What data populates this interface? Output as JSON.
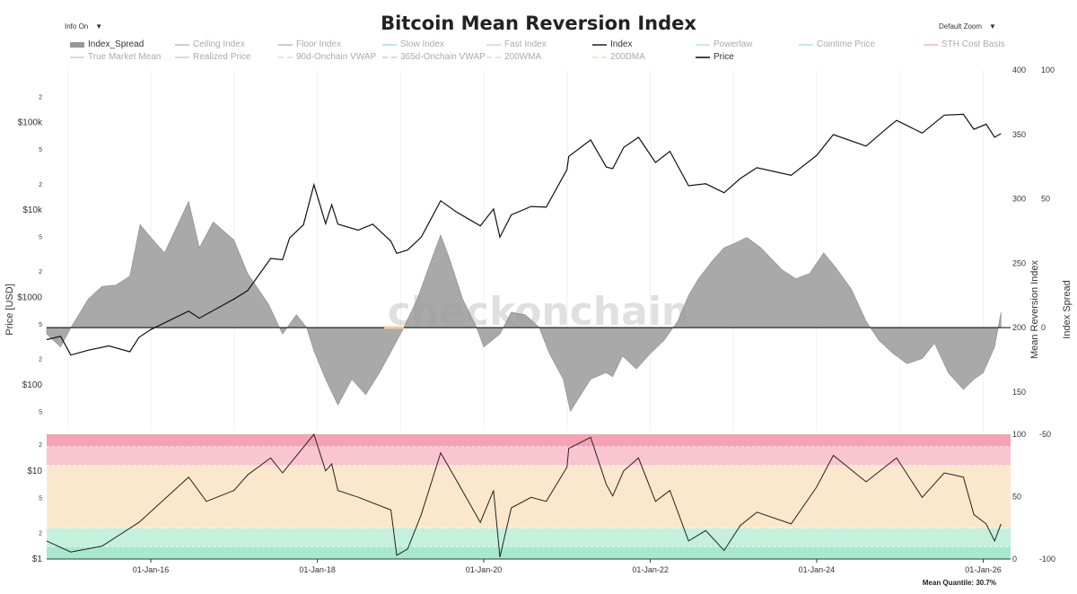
{
  "title": "Bitcoin Mean Reversion Index",
  "controls": {
    "info_label": "Info On",
    "zoom_label": "Default Zoom",
    "arrow": "▼"
  },
  "legend": [
    {
      "label": "Index_Spread",
      "color": "#999999",
      "active": true,
      "style": "bar"
    },
    {
      "label": "Ceiling Index",
      "color": "#cccccc",
      "active": false
    },
    {
      "label": "Floor Index",
      "color": "#cccccc",
      "active": false
    },
    {
      "label": "Slow Index",
      "color": "#bde3f2",
      "active": false
    },
    {
      "label": "Fast Index",
      "color": "#e8d8ef",
      "active": false
    },
    {
      "label": "Index",
      "color": "#555555",
      "active": true
    },
    {
      "label": "Powerlaw",
      "color": "#c9ecd9",
      "active": false
    },
    {
      "label": "Cointime Price",
      "color": "#bdeaf0",
      "active": false
    },
    {
      "label": "STH Cost Basis",
      "color": "#f6c6cc",
      "active": false
    },
    {
      "label": "True Market Mean",
      "color": "#c6dcf3",
      "active": false
    },
    {
      "label": "Realized Price",
      "color": "#d6d6ef",
      "active": false
    },
    {
      "label": "90d-Onchain VWAP",
      "color": "#e3e3e3",
      "active": false
    },
    {
      "label": "365d-Onchain VWAP",
      "color": "#f4c9cf",
      "active": false
    },
    {
      "label": "200WMA",
      "color": "#e8e8c8",
      "active": false
    },
    {
      "label": "200DMA",
      "color": "#f0e8b8",
      "active": false
    },
    {
      "label": "Price",
      "color": "#444444",
      "active": true
    }
  ],
  "axes": {
    "left_title": "Price [USD]",
    "right_title_1": "Mean Reversion Index",
    "right_title_2": "Index Spread",
    "price_ticks": [
      {
        "label": "2",
        "v": 200000
      },
      {
        "label": "$100k",
        "v": 100000
      },
      {
        "label": "5",
        "v": 50000
      },
      {
        "label": "2",
        "v": 20000
      },
      {
        "label": "$10k",
        "v": 10000
      },
      {
        "label": "5",
        "v": 5000
      },
      {
        "label": "2",
        "v": 2000
      },
      {
        "label": "$1000",
        "v": 1000
      },
      {
        "label": "5",
        "v": 500
      },
      {
        "label": "2",
        "v": 200
      },
      {
        "label": "$100",
        "v": 100
      },
      {
        "label": "5",
        "v": 50
      }
    ],
    "mri_ticks": [
      "400",
      "350",
      "300",
      "250",
      "200",
      "150"
    ],
    "mri_values": [
      400,
      350,
      300,
      250,
      200,
      150
    ],
    "spread_ticks": [
      "100",
      "50",
      "0"
    ],
    "spread_values": [
      100,
      50,
      0
    ],
    "lower_left_ticks": [
      {
        "label": "2",
        "v": 20
      },
      {
        "label": "$10",
        "v": 10
      },
      {
        "label": "5",
        "v": 5
      },
      {
        "label": "2",
        "v": 2
      },
      {
        "label": "$1",
        "v": 1
      }
    ],
    "lower_right1_ticks": [
      "100",
      "50",
      "0"
    ],
    "lower_right1_values": [
      100,
      50,
      0
    ],
    "lower_right2_ticks": [
      "-50",
      "-100"
    ],
    "lower_right2_values": [
      -50,
      -100
    ],
    "x_ticks": [
      "01-Jan-16",
      "01-Jan-18",
      "01-Jan-20",
      "01-Jan-22",
      "01-Jan-24",
      "01-Jan-26"
    ]
  },
  "watermark": "checkonchain",
  "footnote": "Mean Quantile: 30.7%",
  "bands": [
    {
      "from": 90,
      "to": 100,
      "color": "#f4a3b4"
    },
    {
      "from": 75,
      "to": 90,
      "color": "#f9c5d1"
    },
    {
      "from": 25,
      "to": 75,
      "color": "#fbe8cc"
    },
    {
      "from": 10,
      "to": 25,
      "color": "#c4f0dc"
    },
    {
      "from": 0,
      "to": 10,
      "color": "#a8e9cd"
    }
  ],
  "chart_data": {
    "type": "line",
    "x_range": [
      "2014-10-01",
      "2026-05-01"
    ],
    "price_range_log": [
      30,
      400000
    ],
    "mri_range": [
      120,
      400
    ],
    "lower_range_pct": [
      0,
      100
    ],
    "series": [
      {
        "name": "Price",
        "unit": "USD",
        "points": [
          [
            "2014-10-01",
            330
          ],
          [
            "2014-12-01",
            360
          ],
          [
            "2015-01-15",
            220
          ],
          [
            "2015-04-01",
            250
          ],
          [
            "2015-07-01",
            280
          ],
          [
            "2015-10-01",
            240
          ],
          [
            "2015-11-10",
            350
          ],
          [
            "2016-01-01",
            430
          ],
          [
            "2016-06-15",
            700
          ],
          [
            "2016-08-01",
            580
          ],
          [
            "2016-12-31",
            960
          ],
          [
            "2017-03-01",
            1200
          ],
          [
            "2017-06-10",
            2800
          ],
          [
            "2017-08-01",
            2700
          ],
          [
            "2017-09-01",
            4800
          ],
          [
            "2017-11-01",
            6800
          ],
          [
            "2017-12-17",
            19500
          ],
          [
            "2018-02-06",
            7000
          ],
          [
            "2018-03-05",
            11500
          ],
          [
            "2018-04-01",
            6900
          ],
          [
            "2018-06-29",
            5900
          ],
          [
            "2018-09-01",
            6900
          ],
          [
            "2018-11-20",
            4400
          ],
          [
            "2018-12-15",
            3200
          ],
          [
            "2019-02-01",
            3500
          ],
          [
            "2019-04-02",
            4900
          ],
          [
            "2019-06-26",
            12800
          ],
          [
            "2019-09-01",
            9600
          ],
          [
            "2019-12-17",
            6600
          ],
          [
            "2020-02-13",
            10300
          ],
          [
            "2020-03-12",
            4900
          ],
          [
            "2020-05-01",
            8800
          ],
          [
            "2020-07-27",
            11000
          ],
          [
            "2020-10-01",
            10800
          ],
          [
            "2020-12-31",
            29000
          ],
          [
            "2021-01-08",
            41000
          ],
          [
            "2021-04-14",
            63500
          ],
          [
            "2021-06-22",
            31000
          ],
          [
            "2021-07-20",
            29800
          ],
          [
            "2021-09-06",
            52000
          ],
          [
            "2021-11-10",
            68000
          ],
          [
            "2022-01-24",
            35000
          ],
          [
            "2022-03-28",
            47000
          ],
          [
            "2022-06-18",
            19000
          ],
          [
            "2022-09-01",
            20000
          ],
          [
            "2022-11-21",
            15800
          ],
          [
            "2023-01-31",
            23000
          ],
          [
            "2023-04-14",
            30500
          ],
          [
            "2023-09-11",
            25000
          ],
          [
            "2023-12-31",
            42000
          ],
          [
            "2024-03-14",
            73000
          ],
          [
            "2024-08-05",
            54000
          ],
          [
            "2024-11-13",
            90000
          ],
          [
            "2024-12-17",
            106000
          ],
          [
            "2025-04-08",
            76000
          ],
          [
            "2025-07-14",
            122000
          ],
          [
            "2025-10-06",
            124500
          ],
          [
            "2025-11-21",
            84000
          ],
          [
            "2026-01-14",
            96000
          ],
          [
            "2026-02-20",
            68000
          ],
          [
            "2026-03-20",
            75000
          ]
        ]
      },
      {
        "name": "Index_Spread",
        "unit": "Mean Reversion Index",
        "baseline": 200,
        "points": [
          [
            "2014-10-01",
            195
          ],
          [
            "2014-12-01",
            185
          ],
          [
            "2015-01-15",
            200
          ],
          [
            "2015-04-01",
            222
          ],
          [
            "2015-06-01",
            232
          ],
          [
            "2015-08-01",
            233
          ],
          [
            "2015-10-01",
            240
          ],
          [
            "2015-11-15",
            280
          ],
          [
            "2016-01-01",
            270
          ],
          [
            "2016-03-01",
            258
          ],
          [
            "2016-06-15",
            298
          ],
          [
            "2016-08-01",
            262
          ],
          [
            "2016-10-01",
            282
          ],
          [
            "2016-12-31",
            268
          ],
          [
            "2017-03-01",
            242
          ],
          [
            "2017-06-01",
            218
          ],
          [
            "2017-08-01",
            195
          ],
          [
            "2017-10-01",
            210
          ],
          [
            "2017-11-15",
            200
          ],
          [
            "2017-12-17",
            182
          ],
          [
            "2018-02-06",
            160
          ],
          [
            "2018-04-01",
            140
          ],
          [
            "2018-06-01",
            160
          ],
          [
            "2018-08-01",
            148
          ],
          [
            "2018-10-01",
            165
          ],
          [
            "2018-12-01",
            185
          ],
          [
            "2019-01-15",
            200
          ],
          [
            "2019-03-15",
            222
          ],
          [
            "2019-06-01",
            260
          ],
          [
            "2019-06-26",
            272
          ],
          [
            "2019-08-01",
            255
          ],
          [
            "2019-10-01",
            222
          ],
          [
            "2019-12-01",
            200
          ],
          [
            "2020-01-01",
            185
          ],
          [
            "2020-03-12",
            195
          ],
          [
            "2020-05-01",
            212
          ],
          [
            "2020-07-01",
            210
          ],
          [
            "2020-09-01",
            200
          ],
          [
            "2020-10-15",
            180
          ],
          [
            "2020-12-15",
            160
          ],
          [
            "2021-01-15",
            135
          ],
          [
            "2021-02-20",
            145
          ],
          [
            "2021-04-14",
            160
          ],
          [
            "2021-06-20",
            165
          ],
          [
            "2021-07-20",
            162
          ],
          [
            "2021-09-01",
            178
          ],
          [
            "2021-11-01",
            168
          ],
          [
            "2022-01-01",
            180
          ],
          [
            "2022-03-01",
            190
          ],
          [
            "2022-05-01",
            205
          ],
          [
            "2022-06-18",
            225
          ],
          [
            "2022-08-01",
            238
          ],
          [
            "2022-10-01",
            252
          ],
          [
            "2022-11-21",
            262
          ],
          [
            "2023-01-01",
            265
          ],
          [
            "2023-03-01",
            270
          ],
          [
            "2023-05-01",
            262
          ],
          [
            "2023-08-01",
            245
          ],
          [
            "2023-10-01",
            238
          ],
          [
            "2023-12-01",
            242
          ],
          [
            "2024-02-01",
            258
          ],
          [
            "2024-04-01",
            245
          ],
          [
            "2024-06-01",
            230
          ],
          [
            "2024-08-05",
            205
          ],
          [
            "2024-10-01",
            190
          ],
          [
            "2024-12-01",
            180
          ],
          [
            "2025-02-01",
            172
          ],
          [
            "2025-04-08",
            176
          ],
          [
            "2025-06-01",
            188
          ],
          [
            "2025-08-01",
            165
          ],
          [
            "2025-10-06",
            152
          ],
          [
            "2025-11-21",
            160
          ],
          [
            "2026-01-01",
            165
          ],
          [
            "2026-02-20",
            185
          ],
          [
            "2026-03-20",
            212
          ]
        ]
      },
      {
        "name": "Index",
        "unit": "USD (lower pane)",
        "points": [
          [
            "2014-10-01",
            1.6
          ],
          [
            "2015-01-15",
            1.2
          ],
          [
            "2015-06-01",
            1.4
          ],
          [
            "2015-11-10",
            2.6
          ],
          [
            "2016-06-15",
            8.5
          ],
          [
            "2016-09-01",
            4.5
          ],
          [
            "2016-12-31",
            6.0
          ],
          [
            "2017-03-01",
            9.0
          ],
          [
            "2017-06-10",
            14.0
          ],
          [
            "2017-08-01",
            9.5
          ],
          [
            "2017-12-17",
            26.0
          ],
          [
            "2018-02-06",
            10.0
          ],
          [
            "2018-03-05",
            12.0
          ],
          [
            "2018-04-01",
            6.0
          ],
          [
            "2018-07-01",
            5.0
          ],
          [
            "2018-11-20",
            3.6
          ],
          [
            "2018-12-15",
            1.1
          ],
          [
            "2019-02-01",
            1.3
          ],
          [
            "2019-04-02",
            3.2
          ],
          [
            "2019-06-26",
            16.0
          ],
          [
            "2019-09-01",
            8.0
          ],
          [
            "2019-12-17",
            2.6
          ],
          [
            "2020-02-13",
            6.0
          ],
          [
            "2020-03-12",
            1.05
          ],
          [
            "2020-05-01",
            3.8
          ],
          [
            "2020-07-27",
            5.0
          ],
          [
            "2020-10-01",
            4.5
          ],
          [
            "2020-12-31",
            11.0
          ],
          [
            "2021-01-08",
            18.0
          ],
          [
            "2021-04-14",
            24.0
          ],
          [
            "2021-06-22",
            7.0
          ],
          [
            "2021-07-20",
            5.2
          ],
          [
            "2021-09-06",
            10.0
          ],
          [
            "2021-11-10",
            14.0
          ],
          [
            "2022-01-24",
            4.5
          ],
          [
            "2022-03-28",
            6.0
          ],
          [
            "2022-06-18",
            1.6
          ],
          [
            "2022-09-01",
            2.1
          ],
          [
            "2022-11-21",
            1.25
          ],
          [
            "2023-01-31",
            2.4
          ],
          [
            "2023-04-14",
            3.4
          ],
          [
            "2023-09-11",
            2.5
          ],
          [
            "2023-12-31",
            6.5
          ],
          [
            "2024-03-14",
            15.0
          ],
          [
            "2024-08-05",
            7.5
          ],
          [
            "2024-11-13",
            12.0
          ],
          [
            "2024-12-17",
            14.0
          ],
          [
            "2025-04-08",
            5.0
          ],
          [
            "2025-07-14",
            9.5
          ],
          [
            "2025-10-06",
            8.5
          ],
          [
            "2025-11-21",
            3.2
          ],
          [
            "2026-01-14",
            2.5
          ],
          [
            "2026-02-20",
            1.6
          ],
          [
            "2026-03-20",
            2.5
          ]
        ]
      }
    ]
  }
}
